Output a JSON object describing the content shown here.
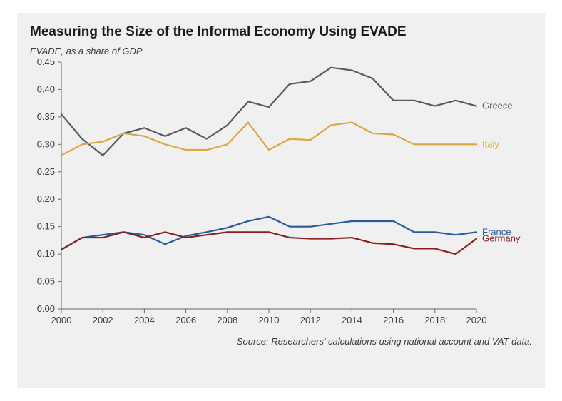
{
  "chart": {
    "type": "line",
    "title": "Measuring the Size of the Informal Economy Using EVADE",
    "subtitle": "EVADE, as a share of GDP",
    "source": "Source: Researchers' calculations using national account and VAT data.",
    "background_color": "#f0f0f0",
    "axis_color": "#666666",
    "grid_color": "#cccccc",
    "text_color": "#3a3a3a",
    "title_color": "#1a1a1a",
    "title_fontsize": 19,
    "label_fontsize": 13,
    "line_width": 2.2,
    "x": {
      "min": 2000,
      "max": 2020,
      "ticks": [
        2000,
        2002,
        2004,
        2006,
        2008,
        2010,
        2012,
        2014,
        2016,
        2018,
        2020
      ]
    },
    "y": {
      "min": 0,
      "max": 0.45,
      "ticks": [
        0.0,
        0.05,
        0.1,
        0.15,
        0.2,
        0.25,
        0.3,
        0.35,
        0.4,
        0.45
      ],
      "tick_labels": [
        "0.00",
        "0.05",
        "0.10",
        "0.15",
        "0.20",
        "0.25",
        "0.30",
        "0.35",
        "0.40",
        "0.45"
      ]
    },
    "years": [
      2000,
      2001,
      2002,
      2003,
      2004,
      2005,
      2006,
      2007,
      2008,
      2009,
      2010,
      2011,
      2012,
      2013,
      2014,
      2015,
      2016,
      2017,
      2018,
      2019,
      2020
    ],
    "series": [
      {
        "name": "Greece",
        "color": "#5a5a5a",
        "label_color": "#5a5a5a",
        "values": [
          0.355,
          0.31,
          0.28,
          0.32,
          0.33,
          0.315,
          0.33,
          0.31,
          0.335,
          0.378,
          0.368,
          0.41,
          0.415,
          0.44,
          0.435,
          0.42,
          0.38,
          0.38,
          0.37,
          0.38,
          0.37
        ]
      },
      {
        "name": "Italy",
        "color": "#d9a83f",
        "label_color": "#d9a83f",
        "values": [
          0.28,
          0.3,
          0.305,
          0.32,
          0.315,
          0.3,
          0.29,
          0.29,
          0.3,
          0.34,
          0.29,
          0.31,
          0.308,
          0.335,
          0.34,
          0.32,
          0.318,
          0.3,
          0.3,
          0.3,
          0.3
        ]
      },
      {
        "name": "France",
        "color": "#2a5a9a",
        "label_color": "#2a5a9a",
        "values": [
          0.108,
          0.13,
          0.135,
          0.14,
          0.135,
          0.118,
          0.133,
          0.14,
          0.148,
          0.16,
          0.168,
          0.15,
          0.15,
          0.155,
          0.16,
          0.16,
          0.16,
          0.14,
          0.14,
          0.135,
          0.14
        ]
      },
      {
        "name": "Germany",
        "color": "#8a1f1f",
        "label_color": "#8a1f1f",
        "values": [
          0.108,
          0.13,
          0.13,
          0.14,
          0.13,
          0.14,
          0.13,
          0.135,
          0.14,
          0.14,
          0.14,
          0.13,
          0.128,
          0.128,
          0.13,
          0.12,
          0.118,
          0.11,
          0.11,
          0.1,
          0.128
        ]
      }
    ]
  }
}
